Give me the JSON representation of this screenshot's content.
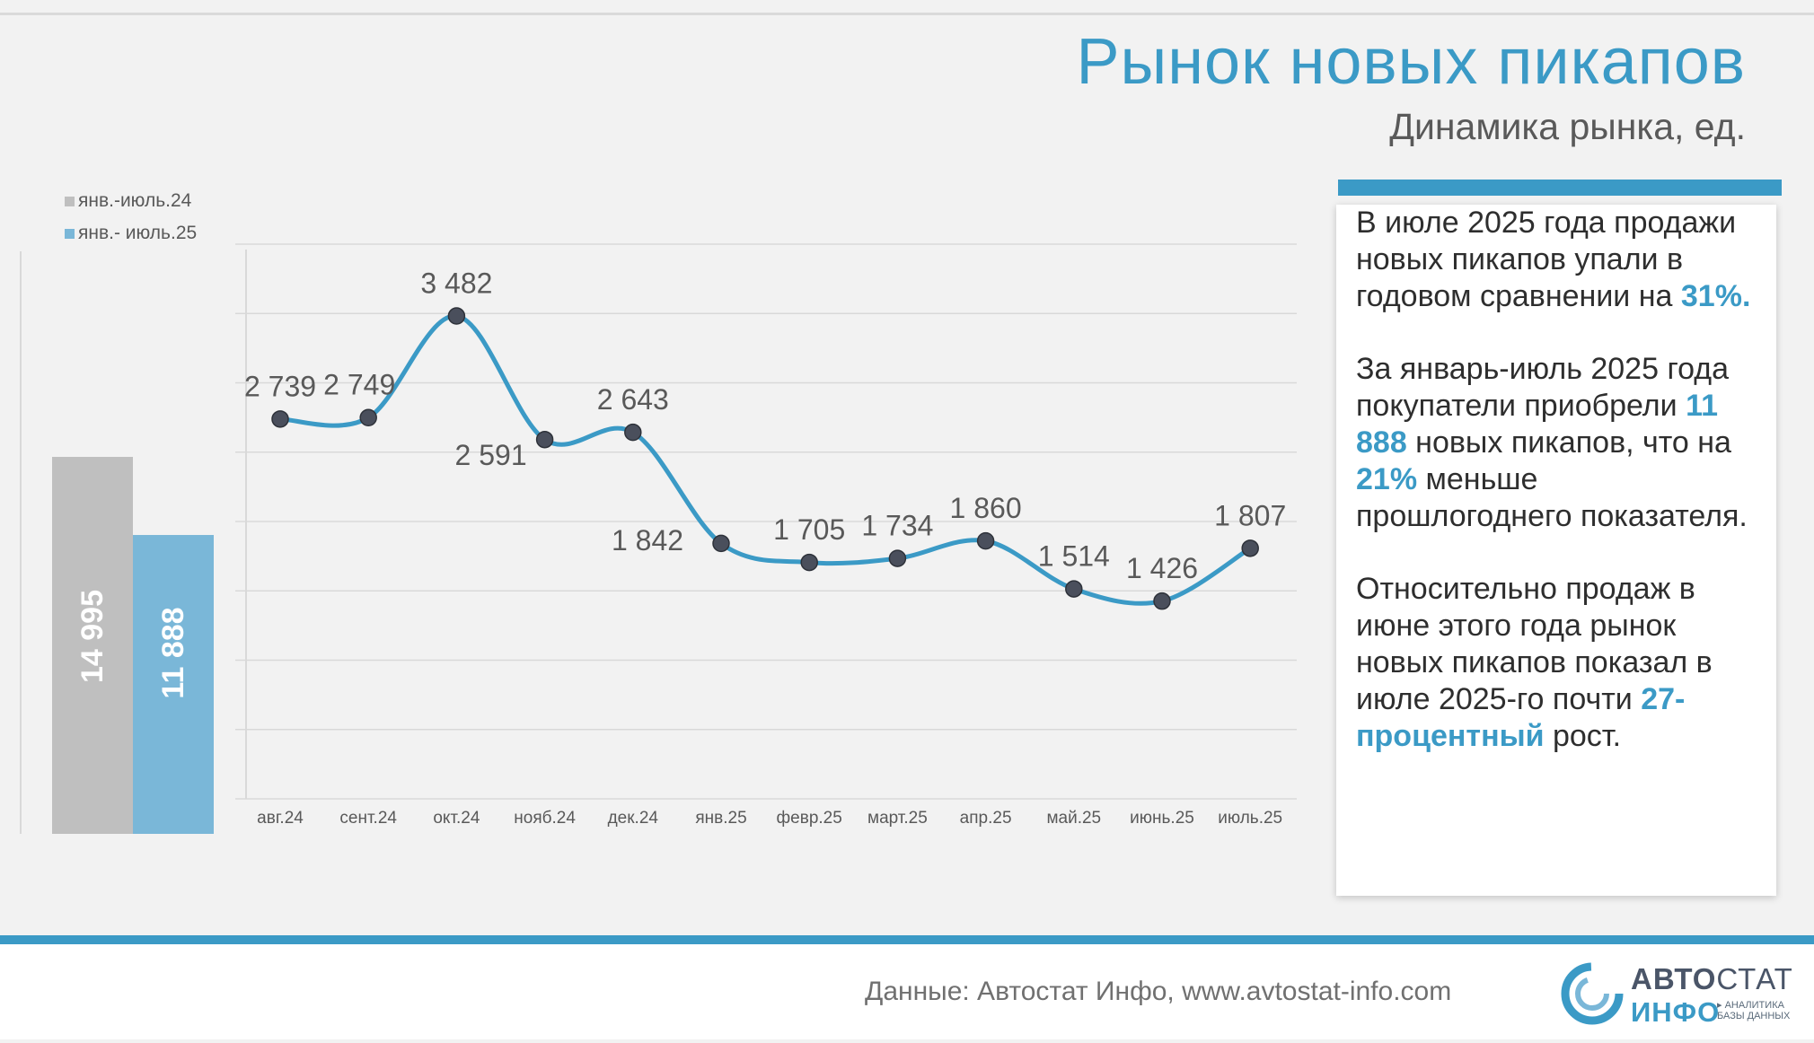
{
  "title": "Рынок новых пикапов",
  "subtitle": "Динамика рынка, ед.",
  "legend": [
    {
      "label": "янв.-июль.24",
      "color": "#bfbfbf"
    },
    {
      "label": "янв.- июль.25",
      "color": "#7ab7d8"
    }
  ],
  "callout": {
    "p1_text": "В июле 2025 года продажи новых пикапов упали в годовом сравнении на ",
    "p1_hl": "31%.",
    "p2_a": "За январь-июль 2025 года покупатели приобрели ",
    "p2_hl1": "11 888",
    "p2_b": " новых пикапов, что на ",
    "p2_hl2": "21%",
    "p2_c": " меньше прошлогоднего показателя.",
    "p3_a": "Относительно продаж в июне этого года рынок новых пикапов показал в июле 2025-го почти ",
    "p3_hl": "27-процентный",
    "p3_b": " рост."
  },
  "footer": {
    "source": "Данные: Автостат Инфо, www.avtostat-info.com",
    "logo_top_a": "АВТО",
    "logo_top_b": "СТАТ",
    "logo_bottom": "ИНФО",
    "logo_tag_1": "▸ АНАЛИТИКА",
    "logo_tag_2": "БАЗЫ ДАННЫХ"
  },
  "chart_data": [
    {
      "type": "bar",
      "categories": [
        "янв.-июль.24",
        "янв.- июль.25"
      ],
      "values": [
        14995,
        11888
      ],
      "value_labels": [
        "14 995",
        "11 888"
      ],
      "colors": [
        "#bfbfbf",
        "#7ab7d8"
      ],
      "ylim": [
        0,
        16000
      ]
    },
    {
      "type": "line",
      "categories": [
        "авг.24",
        "сент.24",
        "окт.24",
        "нояб.24",
        "дек.24",
        "янв.25",
        "февр.25",
        "март.25",
        "апр.25",
        "май.25",
        "июнь.25",
        "июль.25"
      ],
      "series": [
        {
          "values": [
            2739,
            2749,
            3482,
            2591,
            2643,
            1842,
            1705,
            1734,
            1860,
            1514,
            1426,
            1807
          ],
          "labels": [
            "2 739",
            "2 749",
            "3 482",
            "2 591",
            "2 643",
            "1 842",
            "1 705",
            "1 734",
            "1 860",
            "1 514",
            "1 426",
            "1 807"
          ],
          "color": "#3b9ac6"
        }
      ],
      "ylim": [
        0,
        4000
      ],
      "grid": true,
      "smooth": true
    }
  ]
}
